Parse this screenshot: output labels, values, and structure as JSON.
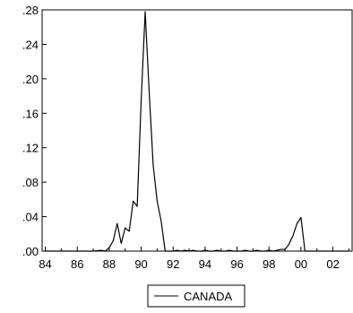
{
  "chart_data": {
    "type": "line",
    "title": "",
    "xlabel": "",
    "ylabel": "",
    "xlim": [
      1983.8,
      2003.2
    ],
    "ylim": [
      0.0,
      0.28
    ],
    "x_tick_values": [
      1984,
      1986,
      1988,
      1990,
      1992,
      1994,
      1996,
      1998,
      2000,
      2002
    ],
    "x_tick_labels": [
      "84",
      "86",
      "88",
      "90",
      "92",
      "94",
      "96",
      "98",
      "00",
      "02"
    ],
    "y_tick_values": [
      0.0,
      0.04,
      0.08,
      0.12,
      0.16,
      0.2,
      0.24,
      0.28
    ],
    "y_tick_labels": [
      ".00",
      ".04",
      ".08",
      ".12",
      ".16",
      ".20",
      ".24",
      ".28"
    ],
    "grid": false,
    "legend_position": "bottom-center",
    "series": [
      {
        "name": "CANADA",
        "color": "#000000",
        "x": [
          1984.0,
          1985.0,
          1986.0,
          1986.5,
          1987.0,
          1987.5,
          1987.75,
          1988.0,
          1988.25,
          1988.5,
          1988.75,
          1989.0,
          1989.25,
          1989.5,
          1989.75,
          1990.0,
          1990.25,
          1990.5,
          1990.75,
          1991.0,
          1991.25,
          1991.5,
          1991.75,
          1992.0,
          1992.25,
          1992.5,
          1992.75,
          1993.0,
          1993.25,
          1993.5,
          1993.75,
          1994.0,
          1994.25,
          1994.5,
          1994.75,
          1995.0,
          1995.25,
          1995.5,
          1995.75,
          1996.0,
          1996.25,
          1996.5,
          1996.75,
          1997.0,
          1997.25,
          1997.5,
          1997.75,
          1998.0,
          1998.25,
          1998.5,
          1998.75,
          1999.0,
          1999.25,
          1999.5,
          1999.75,
          2000.0,
          2000.25,
          2000.5,
          2001.0,
          2002.0,
          2003.0
        ],
        "values": [
          0.0,
          0.0,
          0.0,
          0.0,
          0.0,
          0.001,
          0.0,
          0.004,
          0.012,
          0.032,
          0.009,
          0.027,
          0.023,
          0.058,
          0.052,
          0.175,
          0.278,
          0.185,
          0.1,
          0.058,
          0.035,
          0.0,
          0.0,
          0.0,
          0.001,
          0.0,
          0.001,
          0.0,
          0.001,
          0.0,
          0.0,
          0.001,
          0.0,
          0.0,
          0.001,
          0.0,
          0.0,
          0.001,
          0.0,
          0.0,
          0.0,
          0.001,
          0.0,
          0.0,
          0.001,
          0.0,
          0.0,
          0.001,
          0.0,
          0.001,
          0.002,
          0.002,
          0.008,
          0.018,
          0.032,
          0.039,
          0.0,
          0.0,
          0.0,
          0.0,
          0.0
        ]
      }
    ]
  }
}
